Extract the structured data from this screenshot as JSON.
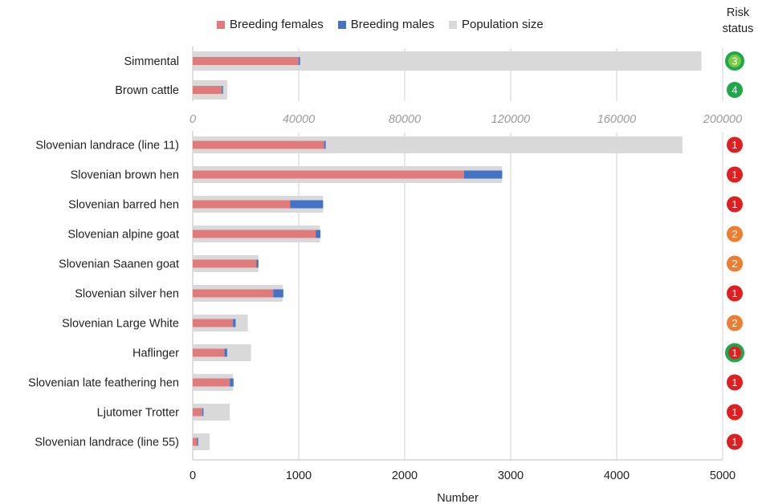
{
  "legend": {
    "females": "Breeding females",
    "males": "Breeding males",
    "population": "Population size"
  },
  "risk_header": [
    "Risk",
    "status"
  ],
  "colors": {
    "females": "#e07b7b",
    "males": "#4472c4",
    "population": "#d9d9d9",
    "risk_red": "#e02020",
    "risk_orange": "#ed7d31",
    "risk_green": "#1fa84a"
  },
  "chart_data": [
    {
      "type": "bar",
      "orientation": "horizontal",
      "categories": [
        "Simmental",
        "Brown cattle"
      ],
      "series": [
        {
          "name": "Population size",
          "values": [
            192000,
            13000
          ]
        },
        {
          "name": "Breeding females",
          "values": [
            40000,
            11000
          ]
        },
        {
          "name": "Breeding males",
          "values": [
            500,
            300
          ]
        }
      ],
      "xlim": [
        0,
        200000
      ],
      "xticks": [
        "0",
        "40000",
        "80000",
        "120000",
        "160000",
        "200000"
      ],
      "risk_status": [
        {
          "value": "3",
          "fill": "green",
          "ring": "green"
        },
        {
          "value": "4",
          "fill": "green",
          "ring": "green"
        }
      ]
    },
    {
      "type": "bar",
      "orientation": "horizontal",
      "categories": [
        "Slovenian landrace (line 11)",
        "Slovenian brown hen",
        "Slovenian barred hen",
        "Slovenian alpine goat",
        "Slovenian Saanen goat",
        "Slovenian silver hen",
        "Slovenian Large White",
        "Haflinger",
        "Slovenian late feathering hen",
        "Ljutomer Trotter",
        "Slovenian landrace (line 55)"
      ],
      "series": [
        {
          "name": "Population size",
          "values": [
            4620,
            2920,
            1230,
            1200,
            620,
            850,
            520,
            550,
            380,
            350,
            160
          ]
        },
        {
          "name": "Breeding females",
          "values": [
            1240,
            2560,
            920,
            1160,
            600,
            760,
            380,
            300,
            350,
            90,
            40
          ]
        },
        {
          "name": "Breeding males",
          "values": [
            15,
            360,
            310,
            45,
            20,
            95,
            25,
            25,
            35,
            8,
            8
          ]
        }
      ],
      "xlim": [
        0,
        5000
      ],
      "xticks": [
        "0",
        "1000",
        "2000",
        "3000",
        "4000",
        "5000"
      ],
      "xlabel": "Number",
      "risk_status": [
        {
          "value": "1",
          "fill": "red",
          "ring": "red"
        },
        {
          "value": "1",
          "fill": "red",
          "ring": "red"
        },
        {
          "value": "1",
          "fill": "red",
          "ring": "red"
        },
        {
          "value": "2",
          "fill": "orange",
          "ring": "orange"
        },
        {
          "value": "2",
          "fill": "orange",
          "ring": "orange"
        },
        {
          "value": "1",
          "fill": "red",
          "ring": "red"
        },
        {
          "value": "2",
          "fill": "orange",
          "ring": "orange"
        },
        {
          "value": "1",
          "fill": "red",
          "ring": "green"
        },
        {
          "value": "1",
          "fill": "red",
          "ring": "red"
        },
        {
          "value": "1",
          "fill": "red",
          "ring": "red"
        },
        {
          "value": "1",
          "fill": "red",
          "ring": "red"
        }
      ]
    }
  ]
}
